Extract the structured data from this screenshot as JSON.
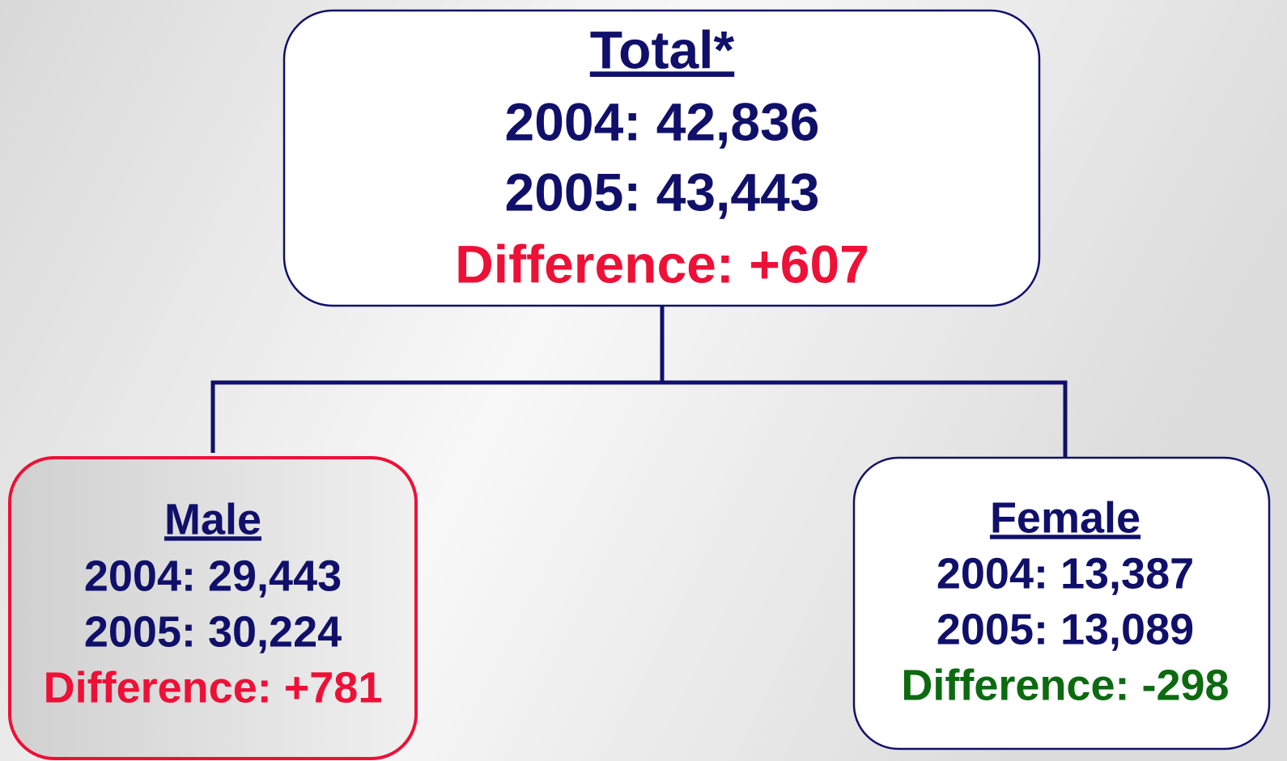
{
  "nodes": [
    {
      "title": "Total*",
      "lines": [
        "2004: 42,836",
        "2005: 43,443"
      ],
      "difference": "Difference: +607"
    },
    {
      "title": "Male",
      "lines": [
        "2004: 29,443",
        "2005: 30,224"
      ],
      "difference": "Difference: +781"
    },
    {
      "title": "Female",
      "lines": [
        "2004: 13,387",
        "2005: 13,089"
      ],
      "difference": "Difference: -298"
    }
  ]
}
